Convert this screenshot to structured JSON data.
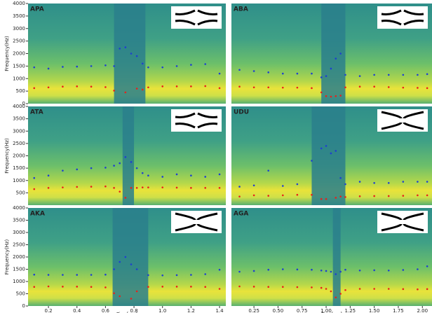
{
  "chart_data": [
    {
      "type": "scatter",
      "title": "APA",
      "y_label": "Frequency(Hz)",
      "x": [
        0.1,
        0.2,
        0.3,
        0.4,
        0.5,
        0.6,
        0.66,
        0.7,
        0.74,
        0.78,
        0.82,
        0.86,
        0.9,
        1.0,
        1.1,
        1.2,
        1.3,
        1.4
      ],
      "series": [
        {
          "color": "#e8211c",
          "values": [
            620,
            650,
            680,
            690,
            680,
            660,
            520,
            null,
            450,
            null,
            600,
            560,
            650,
            690,
            690,
            690,
            700,
            620
          ]
        },
        {
          "color": "#1f3fd0",
          "values": [
            1450,
            1400,
            1470,
            1480,
            1500,
            1530,
            1500,
            2200,
            2250,
            2000,
            1900,
            1600,
            1450,
            1450,
            1500,
            1550,
            1580,
            1200
          ]
        }
      ],
      "xlim": [
        0.057,
        1.444
      ],
      "ylim": [
        0,
        4000
      ],
      "yticks": [
        0,
        500,
        1000,
        1500,
        2000,
        2500,
        3000,
        3500,
        4000
      ]
    },
    {
      "type": "scatter",
      "title": "ABA",
      "x": [
        0.1,
        0.25,
        0.4,
        0.55,
        0.7,
        0.85,
        0.95,
        1.0,
        1.05,
        1.1,
        1.15,
        1.2,
        1.35,
        1.5,
        1.65,
        1.8,
        1.95,
        2.05
      ],
      "series": [
        {
          "color": "#e8211c",
          "values": [
            680,
            650,
            650,
            640,
            640,
            620,
            450,
            300,
            280,
            300,
            320,
            650,
            680,
            680,
            660,
            640,
            630,
            620
          ]
        },
        {
          "color": "#1f3fd0",
          "values": [
            1350,
            1300,
            1250,
            1200,
            1200,
            1200,
            1050,
            1100,
            1400,
            1800,
            2000,
            1150,
            1100,
            1150,
            1150,
            1150,
            1150,
            1180
          ]
        }
      ],
      "xlim": [
        0.016,
        2.1
      ],
      "ylim": [
        0,
        4000
      ]
    },
    {
      "type": "scatter",
      "title": "ATA",
      "y_label": "Frequency(Hz)",
      "x": [
        0.1,
        0.2,
        0.3,
        0.4,
        0.5,
        0.6,
        0.66,
        0.7,
        0.74,
        0.78,
        0.82,
        0.86,
        0.9,
        1.0,
        1.1,
        1.2,
        1.3,
        1.4
      ],
      "series": [
        {
          "color": "#e8211c",
          "values": [
            650,
            700,
            720,
            740,
            750,
            760,
            700,
            550,
            300,
            700,
            700,
            720,
            720,
            720,
            710,
            700,
            700,
            700
          ]
        },
        {
          "color": "#1f3fd0",
          "values": [
            1100,
            1200,
            1400,
            1450,
            1500,
            1520,
            1600,
            1700,
            1950,
            1750,
            1500,
            1300,
            1200,
            1150,
            1250,
            1200,
            1150,
            1250
          ]
        }
      ],
      "xlim": [
        0.057,
        1.444
      ],
      "ylim": [
        0,
        4000
      ],
      "yticks": [
        500,
        1000,
        1500,
        2000,
        2500,
        3000,
        3500,
        4000
      ]
    },
    {
      "type": "scatter",
      "title": "UDU",
      "x": [
        0.1,
        0.25,
        0.4,
        0.55,
        0.7,
        0.85,
        0.95,
        1.0,
        1.05,
        1.1,
        1.15,
        1.2,
        1.35,
        1.5,
        1.65,
        1.8,
        1.95,
        2.05
      ],
      "series": [
        {
          "color": "#e8211c",
          "values": [
            350,
            400,
            380,
            400,
            420,
            420,
            250,
            250,
            null,
            300,
            350,
            330,
            360,
            370,
            370,
            380,
            400,
            400
          ]
        },
        {
          "color": "#1f3fd0",
          "values": [
            750,
            800,
            1400,
            780,
            850,
            1800,
            2300,
            2400,
            2100,
            2200,
            1100,
            850,
            950,
            900,
            900,
            950,
            950,
            950
          ]
        }
      ],
      "xlim": [
        0.016,
        2.1
      ],
      "ylim": [
        0,
        4000
      ]
    },
    {
      "type": "scatter",
      "title": "AKA",
      "y_label": "Frequency(Hz)",
      "x_label": "Time[sec]",
      "x": [
        0.1,
        0.2,
        0.3,
        0.4,
        0.5,
        0.6,
        0.66,
        0.7,
        0.74,
        0.78,
        0.82,
        0.86,
        0.9,
        1.0,
        1.1,
        1.2,
        1.3,
        1.4
      ],
      "series": [
        {
          "color": "#e8211c",
          "values": [
            780,
            800,
            790,
            790,
            780,
            760,
            520,
            400,
            null,
            300,
            600,
            null,
            780,
            790,
            790,
            790,
            780,
            700
          ]
        },
        {
          "color": "#1f3fd0",
          "values": [
            1280,
            1270,
            1270,
            1270,
            1270,
            1280,
            1500,
            1800,
            2000,
            1700,
            1500,
            null,
            1260,
            1250,
            1260,
            1270,
            1300,
            1480
          ]
        }
      ],
      "xlim": [
        0.057,
        1.444
      ],
      "ylim": [
        0,
        4000
      ],
      "yticks": [
        0,
        500,
        1000,
        1500,
        2000,
        2500,
        3000,
        3500,
        4000
      ],
      "xticks": [
        0.2,
        0.4,
        0.6,
        0.8,
        {
          "value": 1,
          "label": "1.0"
        },
        1.2,
        1.4
      ]
    },
    {
      "type": "scatter",
      "title": "AGA",
      "x_label": "Time[sec]",
      "x": [
        0.1,
        0.25,
        0.4,
        0.55,
        0.7,
        0.85,
        0.95,
        1.0,
        1.05,
        1.1,
        1.15,
        1.2,
        1.35,
        1.5,
        1.65,
        1.8,
        1.95,
        2.05
      ],
      "series": [
        {
          "color": "#e8211c",
          "values": [
            800,
            790,
            780,
            780,
            770,
            760,
            740,
            700,
            600,
            350,
            500,
            650,
            700,
            700,
            700,
            690,
            680,
            690
          ]
        },
        {
          "color": "#1f3fd0",
          "values": [
            1400,
            1430,
            1480,
            1500,
            1490,
            1480,
            1450,
            1430,
            1400,
            1300,
            1400,
            1480,
            1450,
            1460,
            1450,
            1470,
            1500,
            1620
          ]
        }
      ],
      "xlim": [
        0.016,
        2.1
      ],
      "ylim": [
        0,
        4000
      ],
      "xticks": [
        0.25,
        {
          "value": 0.5,
          "label": "0.50"
        },
        0.75,
        {
          "value": 1,
          "label": "1.00"
        },
        1.25,
        {
          "value": 1.5,
          "label": "1.50"
        },
        1.75,
        {
          "value": 2,
          "label": "2.00"
        }
      ]
    }
  ]
}
